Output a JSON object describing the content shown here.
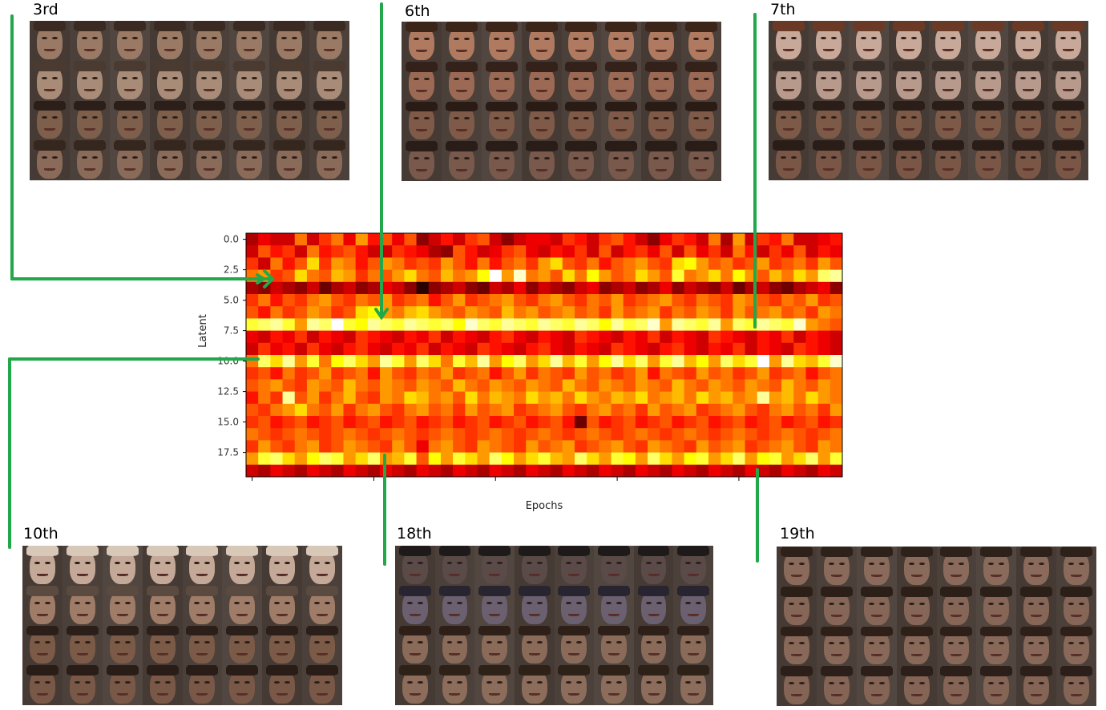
{
  "panels": [
    {
      "label": "3rd"
    },
    {
      "label": "6th"
    },
    {
      "label": "7th"
    },
    {
      "label": "10th"
    },
    {
      "label": "18th"
    },
    {
      "label": "19th"
    }
  ],
  "colors": {
    "connector": "#22a84a",
    "cmap": "hot"
  },
  "chart_data": {
    "type": "heatmap",
    "title": "",
    "xlabel": "Epochs",
    "ylabel": "Latent",
    "ytick_labels": [
      "0.0",
      "2.5",
      "5.0",
      "7.5",
      "10.0",
      "12.5",
      "15.0",
      "17.5"
    ],
    "yticks": [
      0,
      2.5,
      5,
      7.5,
      10,
      12.5,
      15,
      17.5
    ],
    "ylim": [
      -0.5,
      19.5
    ],
    "rows": 20,
    "cols": 49,
    "colormap": "hot",
    "x_tick_labels_visible": false,
    "grid": false,
    "highlighted_latents": [
      3,
      6,
      7,
      10,
      18,
      19
    ],
    "values": [
      [
        0.25,
        0.35,
        0.3,
        0.3,
        0.55,
        0.3,
        0.45,
        0.55,
        0.35,
        0.6,
        0.4,
        0.5,
        0.35,
        0.5,
        0.2,
        0.3,
        0.4,
        0.3,
        0.45,
        0.5,
        0.3,
        0.2,
        0.3,
        0.35,
        0.35,
        0.3,
        0.45,
        0.4,
        0.3,
        0.45,
        0.5,
        0.4,
        0.3,
        0.2,
        0.35,
        0.45,
        0.4,
        0.3,
        0.55,
        0.25,
        0.6,
        0.3,
        0.45,
        0.4,
        0.55,
        0.3,
        0.3,
        0.35,
        0.4
      ],
      [
        0.3,
        0.5,
        0.4,
        0.45,
        0.3,
        0.55,
        0.4,
        0.45,
        0.5,
        0.4,
        0.3,
        0.3,
        0.45,
        0.4,
        0.35,
        0.25,
        0.2,
        0.5,
        0.4,
        0.3,
        0.35,
        0.45,
        0.5,
        0.35,
        0.3,
        0.4,
        0.35,
        0.45,
        0.3,
        0.5,
        0.3,
        0.4,
        0.45,
        0.35,
        0.5,
        0.3,
        0.5,
        0.35,
        0.45,
        0.3,
        0.55,
        0.4,
        0.3,
        0.45,
        0.35,
        0.5,
        0.3,
        0.4,
        0.35
      ],
      [
        0.45,
        0.3,
        0.55,
        0.4,
        0.5,
        0.7,
        0.45,
        0.6,
        0.55,
        0.4,
        0.5,
        0.6,
        0.55,
        0.45,
        0.5,
        0.45,
        0.6,
        0.5,
        0.4,
        0.55,
        0.4,
        0.5,
        0.55,
        0.45,
        0.6,
        0.7,
        0.5,
        0.45,
        0.55,
        0.4,
        0.5,
        0.55,
        0.6,
        0.5,
        0.45,
        0.7,
        0.75,
        0.6,
        0.5,
        0.55,
        0.45,
        0.5,
        0.6,
        0.45,
        0.5,
        0.55,
        0.45,
        0.6,
        0.5
      ],
      [
        0.55,
        0.6,
        0.45,
        0.5,
        0.7,
        0.55,
        0.5,
        0.65,
        0.6,
        0.45,
        0.55,
        0.5,
        0.6,
        0.7,
        0.55,
        0.5,
        0.65,
        0.55,
        0.6,
        0.75,
        1.0,
        0.6,
        0.95,
        0.55,
        0.6,
        0.5,
        0.7,
        0.55,
        0.75,
        0.6,
        0.5,
        0.55,
        0.7,
        0.6,
        0.5,
        0.8,
        0.55,
        0.6,
        0.7,
        0.55,
        0.75,
        0.6,
        0.5,
        0.65,
        0.55,
        0.7,
        0.6,
        0.85,
        0.9
      ],
      [
        0.25,
        0.2,
        0.3,
        0.25,
        0.2,
        0.3,
        0.15,
        0.25,
        0.3,
        0.2,
        0.25,
        0.35,
        0.3,
        0.2,
        0.05,
        0.2,
        0.25,
        0.3,
        0.2,
        0.15,
        0.3,
        0.25,
        0.35,
        0.2,
        0.3,
        0.25,
        0.2,
        0.3,
        0.35,
        0.2,
        0.25,
        0.3,
        0.2,
        0.25,
        0.35,
        0.2,
        0.3,
        0.25,
        0.2,
        0.3,
        0.15,
        0.25,
        0.3,
        0.2,
        0.15,
        0.25,
        0.3,
        0.35,
        0.2
      ],
      [
        0.45,
        0.55,
        0.4,
        0.5,
        0.45,
        0.55,
        0.6,
        0.5,
        0.45,
        0.55,
        0.5,
        0.6,
        0.45,
        0.5,
        0.55,
        0.4,
        0.5,
        0.6,
        0.45,
        0.5,
        0.55,
        0.6,
        0.5,
        0.45,
        0.55,
        0.6,
        0.5,
        0.45,
        0.55,
        0.5,
        0.6,
        0.45,
        0.5,
        0.55,
        0.6,
        0.5,
        0.45,
        0.55,
        0.5,
        0.45,
        0.6,
        0.55,
        0.5,
        0.45,
        0.55,
        0.5,
        0.6,
        0.45,
        0.5
      ],
      [
        0.5,
        0.4,
        0.55,
        0.45,
        0.5,
        0.6,
        0.55,
        0.45,
        0.5,
        0.7,
        0.75,
        0.6,
        0.55,
        0.65,
        0.7,
        0.6,
        0.55,
        0.5,
        0.6,
        0.55,
        0.5,
        0.65,
        0.55,
        0.6,
        0.5,
        0.55,
        0.6,
        0.5,
        0.55,
        0.45,
        0.6,
        0.5,
        0.55,
        0.6,
        0.45,
        0.55,
        0.5,
        0.6,
        0.55,
        0.45,
        0.6,
        0.5,
        0.55,
        0.6,
        0.5,
        0.55,
        0.45,
        0.6,
        0.55
      ],
      [
        0.8,
        0.85,
        0.9,
        0.8,
        0.6,
        0.9,
        0.85,
        1.0,
        0.8,
        0.75,
        0.9,
        0.85,
        0.8,
        0.9,
        0.85,
        0.8,
        0.85,
        0.75,
        0.95,
        0.85,
        0.8,
        0.9,
        0.85,
        0.8,
        0.9,
        0.85,
        0.8,
        0.9,
        0.85,
        0.75,
        0.9,
        0.8,
        0.85,
        0.95,
        0.6,
        0.9,
        0.85,
        0.8,
        0.9,
        0.6,
        0.85,
        0.8,
        0.9,
        0.85,
        0.8,
        0.95,
        0.6,
        0.55,
        0.5
      ],
      [
        0.35,
        0.3,
        0.4,
        0.35,
        0.45,
        0.3,
        0.4,
        0.35,
        0.3,
        0.45,
        0.4,
        0.35,
        0.3,
        0.4,
        0.35,
        0.45,
        0.3,
        0.4,
        0.35,
        0.3,
        0.4,
        0.45,
        0.35,
        0.3,
        0.4,
        0.35,
        0.3,
        0.45,
        0.4,
        0.35,
        0.3,
        0.4,
        0.35,
        0.45,
        0.3,
        0.4,
        0.35,
        0.3,
        0.45,
        0.4,
        0.35,
        0.3,
        0.4,
        0.35,
        0.45,
        0.3,
        0.4,
        0.35,
        0.3
      ],
      [
        0.3,
        0.45,
        0.35,
        0.4,
        0.3,
        0.45,
        0.35,
        0.3,
        0.4,
        0.45,
        0.35,
        0.3,
        0.4,
        0.35,
        0.45,
        0.3,
        0.4,
        0.35,
        0.3,
        0.45,
        0.4,
        0.35,
        0.3,
        0.4,
        0.45,
        0.35,
        0.3,
        0.4,
        0.35,
        0.3,
        0.45,
        0.4,
        0.35,
        0.3,
        0.4,
        0.45,
        0.35,
        0.3,
        0.4,
        0.35,
        0.45,
        0.3,
        0.4,
        0.35,
        0.3,
        0.45,
        0.4,
        0.35,
        0.3
      ],
      [
        0.55,
        0.85,
        0.7,
        0.9,
        0.6,
        0.8,
        0.55,
        0.75,
        0.85,
        0.7,
        0.6,
        0.9,
        0.8,
        0.6,
        0.85,
        0.7,
        0.55,
        0.8,
        0.65,
        0.9,
        0.6,
        0.75,
        0.85,
        0.6,
        0.7,
        0.9,
        0.65,
        0.8,
        0.6,
        0.75,
        0.9,
        0.7,
        0.85,
        0.6,
        0.8,
        0.9,
        0.65,
        0.75,
        0.6,
        0.85,
        0.7,
        0.8,
        1.0,
        0.6,
        0.9,
        0.7,
        0.65,
        0.8,
        0.95
      ],
      [
        0.45,
        0.5,
        0.4,
        0.55,
        0.45,
        0.5,
        0.6,
        0.45,
        0.5,
        0.55,
        0.4,
        0.6,
        0.5,
        0.45,
        0.55,
        0.5,
        0.6,
        0.45,
        0.5,
        0.55,
        0.4,
        0.5,
        0.6,
        0.45,
        0.55,
        0.5,
        0.45,
        0.6,
        0.5,
        0.55,
        0.45,
        0.5,
        0.6,
        0.4,
        0.55,
        0.5,
        0.45,
        0.6,
        0.5,
        0.55,
        0.45,
        0.5,
        0.6,
        0.45,
        0.5,
        0.55,
        0.4,
        0.5,
        0.55
      ],
      [
        0.5,
        0.55,
        0.6,
        0.5,
        0.45,
        0.6,
        0.55,
        0.5,
        0.65,
        0.55,
        0.5,
        0.6,
        0.55,
        0.5,
        0.6,
        0.55,
        0.5,
        0.65,
        0.55,
        0.5,
        0.6,
        0.55,
        0.5,
        0.6,
        0.55,
        0.5,
        0.65,
        0.55,
        0.5,
        0.6,
        0.55,
        0.5,
        0.6,
        0.55,
        0.5,
        0.65,
        0.55,
        0.5,
        0.6,
        0.55,
        0.5,
        0.6,
        0.55,
        0.5,
        0.65,
        0.55,
        0.5,
        0.6,
        0.55
      ],
      [
        0.4,
        0.55,
        0.45,
        0.9,
        0.5,
        0.6,
        0.45,
        0.55,
        0.65,
        0.5,
        0.45,
        0.6,
        0.55,
        0.7,
        0.65,
        0.55,
        0.6,
        0.5,
        0.7,
        0.55,
        0.65,
        0.6,
        0.55,
        0.7,
        0.6,
        0.65,
        0.55,
        0.7,
        0.6,
        0.55,
        0.65,
        0.6,
        0.7,
        0.55,
        0.6,
        0.65,
        0.55,
        0.7,
        0.6,
        0.65,
        0.55,
        0.6,
        0.9,
        0.6,
        0.65,
        0.55,
        0.7,
        0.6,
        0.55
      ],
      [
        0.5,
        0.45,
        0.55,
        0.6,
        0.7,
        0.55,
        0.5,
        0.6,
        0.45,
        0.55,
        0.6,
        0.5,
        0.45,
        0.55,
        0.6,
        0.5,
        0.55,
        0.45,
        0.6,
        0.5,
        0.55,
        0.6,
        0.45,
        0.5,
        0.55,
        0.6,
        0.5,
        0.45,
        0.55,
        0.6,
        0.5,
        0.55,
        0.45,
        0.6,
        0.5,
        0.55,
        0.6,
        0.45,
        0.5,
        0.55,
        0.6,
        0.5,
        0.45,
        0.55,
        0.6,
        0.5,
        0.55,
        0.45,
        0.6
      ],
      [
        0.45,
        0.5,
        0.4,
        0.45,
        0.5,
        0.4,
        0.45,
        0.5,
        0.4,
        0.45,
        0.5,
        0.4,
        0.45,
        0.5,
        0.4,
        0.45,
        0.5,
        0.4,
        0.45,
        0.5,
        0.4,
        0.45,
        0.5,
        0.4,
        0.45,
        0.5,
        0.4,
        0.15,
        0.5,
        0.4,
        0.45,
        0.5,
        0.4,
        0.45,
        0.5,
        0.4,
        0.45,
        0.5,
        0.4,
        0.45,
        0.5,
        0.4,
        0.45,
        0.5,
        0.4,
        0.45,
        0.5,
        0.4,
        0.45
      ],
      [
        0.55,
        0.5,
        0.45,
        0.5,
        0.55,
        0.5,
        0.45,
        0.5,
        0.55,
        0.5,
        0.45,
        0.5,
        0.55,
        0.5,
        0.45,
        0.5,
        0.55,
        0.5,
        0.45,
        0.5,
        0.55,
        0.5,
        0.45,
        0.5,
        0.55,
        0.5,
        0.45,
        0.5,
        0.55,
        0.5,
        0.45,
        0.5,
        0.55,
        0.5,
        0.45,
        0.5,
        0.55,
        0.5,
        0.45,
        0.5,
        0.55,
        0.5,
        0.45,
        0.5,
        0.55,
        0.5,
        0.45,
        0.5,
        0.55
      ],
      [
        0.45,
        0.6,
        0.5,
        0.45,
        0.55,
        0.6,
        0.45,
        0.5,
        0.6,
        0.55,
        0.5,
        0.45,
        0.6,
        0.5,
        0.35,
        0.55,
        0.6,
        0.5,
        0.45,
        0.6,
        0.55,
        0.5,
        0.45,
        0.6,
        0.5,
        0.55,
        0.6,
        0.45,
        0.5,
        0.55,
        0.6,
        0.5,
        0.45,
        0.6,
        0.55,
        0.5,
        0.45,
        0.6,
        0.5,
        0.55,
        0.6,
        0.45,
        0.5,
        0.55,
        0.6,
        0.5,
        0.45,
        0.6,
        0.55
      ],
      [
        0.6,
        0.8,
        0.85,
        0.7,
        0.6,
        0.75,
        0.85,
        0.8,
        0.6,
        0.7,
        0.85,
        0.6,
        0.65,
        0.8,
        0.5,
        0.75,
        0.6,
        0.8,
        0.7,
        0.6,
        0.85,
        0.75,
        0.6,
        0.7,
        0.8,
        0.65,
        0.6,
        0.85,
        0.7,
        0.6,
        0.8,
        0.75,
        0.6,
        0.85,
        0.7,
        0.6,
        0.75,
        0.8,
        0.6,
        0.7,
        0.85,
        0.6,
        0.75,
        0.8,
        0.6,
        0.7,
        0.85,
        0.6,
        0.8
      ],
      [
        0.3,
        0.25,
        0.35,
        0.3,
        0.25,
        0.35,
        0.3,
        0.25,
        0.35,
        0.3,
        0.25,
        0.35,
        0.3,
        0.25,
        0.35,
        0.3,
        0.25,
        0.35,
        0.3,
        0.25,
        0.35,
        0.3,
        0.25,
        0.35,
        0.3,
        0.25,
        0.35,
        0.3,
        0.25,
        0.35,
        0.3,
        0.25,
        0.35,
        0.3,
        0.25,
        0.35,
        0.3,
        0.25,
        0.35,
        0.3,
        0.25,
        0.35,
        0.3,
        0.25,
        0.35,
        0.3,
        0.25,
        0.35,
        0.3
      ]
    ]
  }
}
